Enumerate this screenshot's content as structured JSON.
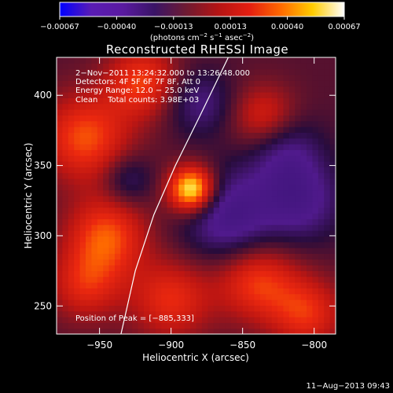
{
  "chart_data": {
    "type": "heatmap",
    "title": "Reconstructed RHESSI Image",
    "xlabel": "Heliocentric X (arcsec)",
    "ylabel": "Heliocentric Y (arcsec)",
    "xlim": [
      -980,
      -785
    ],
    "ylim": [
      230,
      427
    ],
    "xticks": [
      -950,
      -900,
      -850,
      -800
    ],
    "xtick_labels": [
      "−950",
      "−900",
      "−850",
      "−800"
    ],
    "yticks": [
      250,
      300,
      350,
      400
    ],
    "ytick_labels": [
      "250",
      "300",
      "350",
      "400"
    ],
    "colorbar": {
      "range": [
        -0.00067,
        0.00067
      ],
      "tick_labels": [
        "−0.00067",
        "−0.00040",
        "−0.00013",
        "0.00013",
        "0.00040",
        "0.00067"
      ],
      "unit_parts": [
        "(photons cm",
        "−2",
        " s",
        "−1",
        " asec",
        "−2",
        ")"
      ],
      "colors": [
        "#0000ff",
        "#5a1cb4",
        "#5a1aa0",
        "#3a1466",
        "#6e1a32",
        "#b41414",
        "#e41e10",
        "#ff6a00",
        "#ffcc00",
        "#ffffff"
      ]
    },
    "annotations": [
      "2−Nov−2011 13:24:32.000 to 13:26:48.000",
      "Detectors: 4F 5F 6F 7F 8F, Att 0",
      "Energy Range: 12.0 − 25.0 keV",
      "Clean    Total counts: 3.98E+03"
    ],
    "peak_label": "Position of Peak = [−885,333]",
    "peak": {
      "x": -885,
      "y": 333
    },
    "sources": [
      {
        "x": -885,
        "y": 333,
        "amp": 1.0,
        "sigma": 12
      },
      {
        "x": -960,
        "y": 370,
        "amp": 0.55,
        "sigma": 22
      },
      {
        "x": -945,
        "y": 300,
        "amp": 0.55,
        "sigma": 20
      },
      {
        "x": -920,
        "y": 410,
        "amp": 0.5,
        "sigma": 18
      },
      {
        "x": -840,
        "y": 268,
        "amp": 0.5,
        "sigma": 20
      },
      {
        "x": -805,
        "y": 245,
        "amp": 0.45,
        "sigma": 18
      },
      {
        "x": -900,
        "y": 255,
        "amp": 0.45,
        "sigma": 20
      },
      {
        "x": -960,
        "y": 265,
        "amp": 0.4,
        "sigma": 18
      },
      {
        "x": -835,
        "y": 385,
        "amp": 0.4,
        "sigma": 16
      },
      {
        "x": -860,
        "y": 315,
        "amp": -0.55,
        "sigma": 22
      },
      {
        "x": -810,
        "y": 325,
        "amp": -0.45,
        "sigma": 20
      },
      {
        "x": -880,
        "y": 395,
        "amp": -0.35,
        "sigma": 16
      },
      {
        "x": -930,
        "y": 340,
        "amp": -0.3,
        "sigma": 12
      },
      {
        "x": -820,
        "y": 360,
        "amp": -0.35,
        "sigma": 18
      }
    ],
    "limb_curve": [
      [
        -935,
        230
      ],
      [
        -925,
        275
      ],
      [
        -912,
        315
      ],
      [
        -897,
        350
      ],
      [
        -880,
        385
      ],
      [
        -860,
        427
      ]
    ]
  },
  "footer": {
    "timestamp": "11−Aug−2013 09:43"
  }
}
